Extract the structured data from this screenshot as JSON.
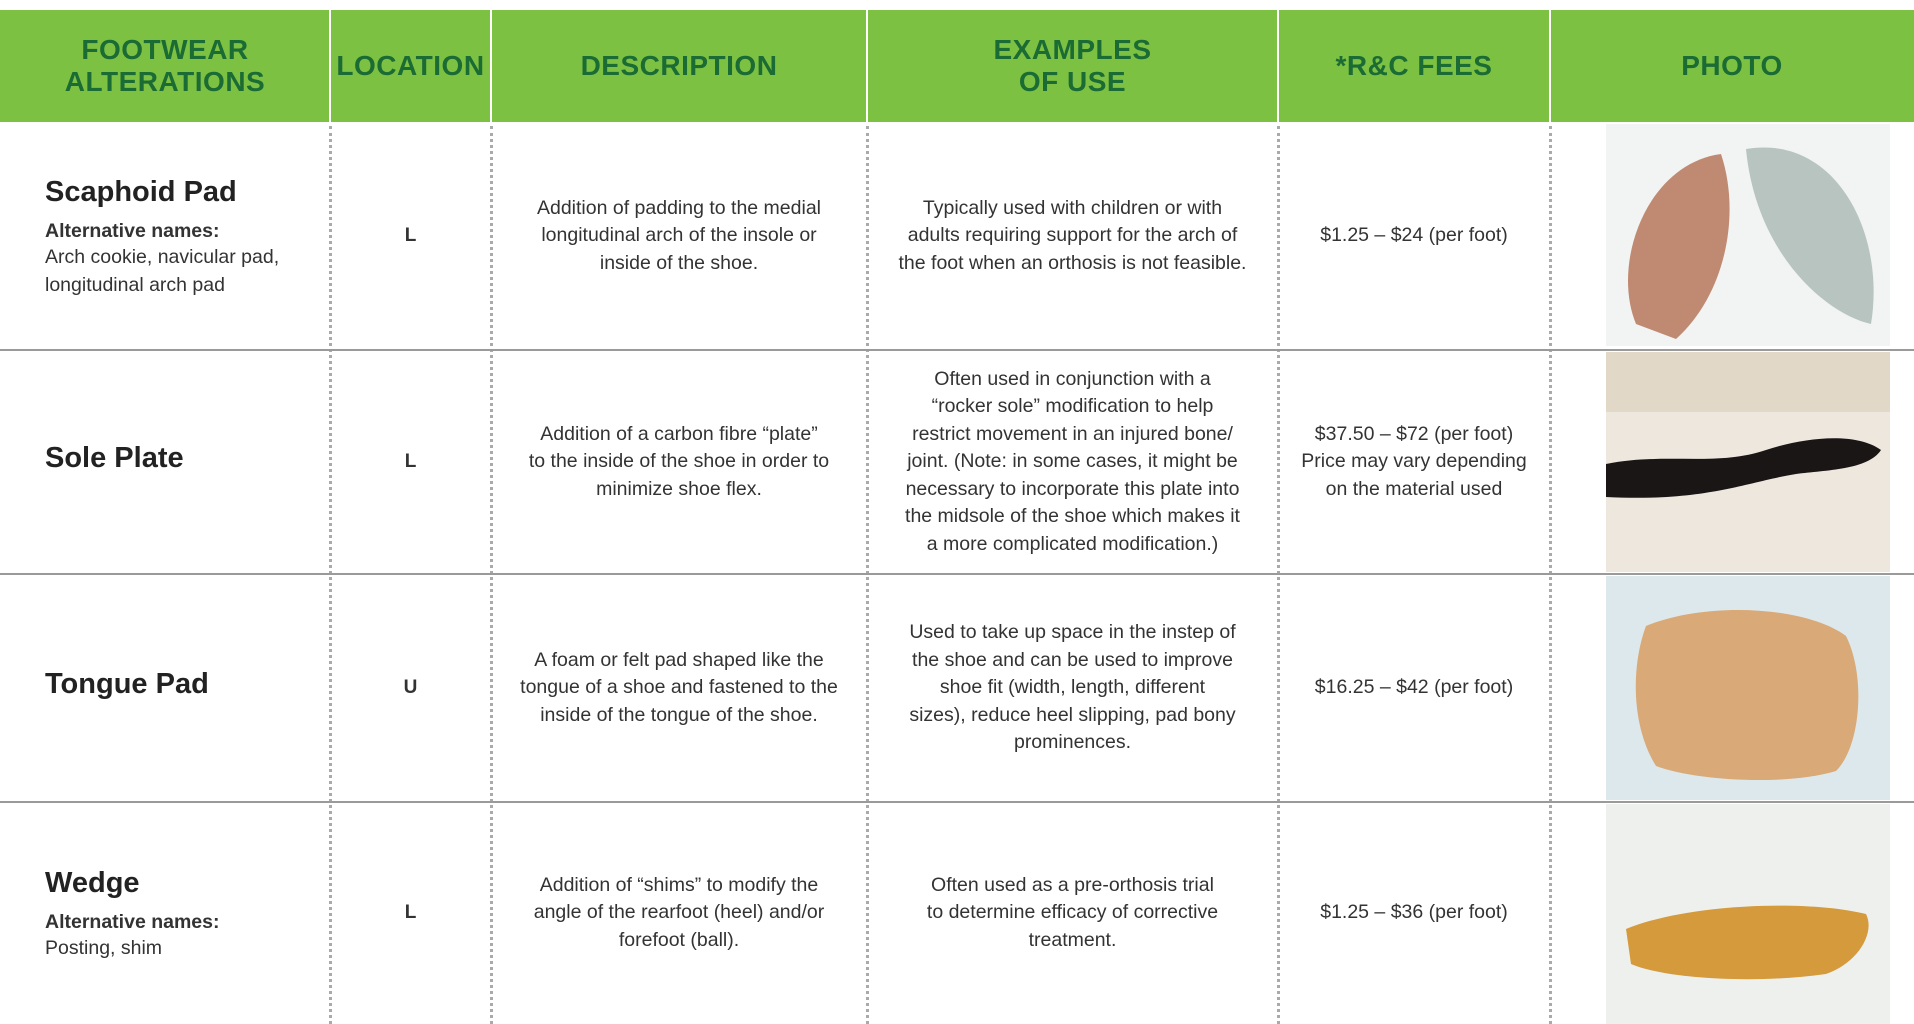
{
  "table": {
    "header": [
      [
        "FOOTWEAR",
        "ALTERATIONS"
      ],
      [
        "LOCATION"
      ],
      [
        "DESCRIPTION"
      ],
      [
        "EXAMPLES",
        "OF USE"
      ],
      [
        "*R&C FEES"
      ],
      [
        "PHOTO"
      ]
    ],
    "rows": [
      {
        "name": "Scaphoid Pad",
        "alt_label": "Alternative names:",
        "alt_names": [
          "Arch cookie, navicular pad,",
          "longitudinal arch pad"
        ],
        "location": "L",
        "description": [
          "Addition of padding to the medial",
          "longitudinal arch of the insole or",
          "inside of the shoe."
        ],
        "examples": [
          "Typically used with children or with",
          "adults requiring support for the arch of",
          "the foot when an orthosis is not feasible."
        ],
        "fees": [
          "$1.25 – $24 (per foot)"
        ]
      },
      {
        "name": "Sole Plate",
        "location": "L",
        "description": [
          "Addition of a carbon fibre “plate”",
          "to the inside of the shoe in order to",
          "minimize shoe flex."
        ],
        "examples": [
          "Often used in conjunction with a",
          "“rocker sole” modification to help",
          "restrict movement in an injured bone/",
          "joint. (Note: in some cases, it might be",
          "necessary to incorporate this plate into",
          "the midsole of the shoe which makes it",
          "a more complicated modification.)"
        ],
        "fees": [
          "$37.50 – $72 (per foot)",
          "Price may vary depending",
          "on the material used"
        ]
      },
      {
        "name": "Tongue Pad",
        "location": "U",
        "description": [
          "A foam or felt pad shaped like the",
          "tongue of a shoe and fastened to the",
          "inside of the tongue of the shoe."
        ],
        "examples": [
          "Used to take up space in the instep of",
          "the shoe and can be used to improve",
          "shoe fit (width, length, different",
          "sizes), reduce heel slipping, pad bony",
          "prominences."
        ],
        "fees": [
          "$16.25 – $42 (per foot)"
        ]
      },
      {
        "name": "Wedge",
        "alt_label": "Alternative names:",
        "alt_names": [
          "Posting, shim"
        ],
        "location": "L",
        "description": [
          "Addition of “shims” to modify the",
          "angle of the rearfoot (heel) and/or",
          "forefoot (ball)."
        ],
        "examples": [
          "Often used as a pre-orthosis trial",
          "to determine efficacy of corrective",
          "treatment."
        ],
        "fees": [
          "$1.25 – $36 (per foot)"
        ]
      }
    ]
  }
}
